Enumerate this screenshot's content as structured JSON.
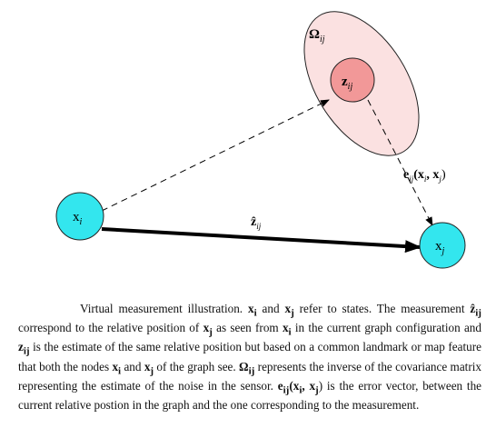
{
  "nodes": {
    "xi": {
      "sym": "x",
      "sub": "i",
      "fill": "#33e6ee"
    },
    "xj": {
      "sym": "x",
      "sub": "j",
      "fill": "#33e6ee"
    },
    "zij": {
      "sym": "z",
      "sub": "ij",
      "fill": "#f29898"
    }
  },
  "omega_label": {
    "sym": "Ω",
    "sub": "ij"
  },
  "ellipse_fill": "#fbe1e1",
  "edge_label": {
    "sym": "ẑ",
    "sub": "ij"
  },
  "error_label": {
    "pre": "e",
    "sub": "ij",
    "mid": "(x",
    "s1": "i",
    "comma": ", x",
    "s2": "j",
    "post": ")"
  },
  "caption": {
    "p1": "Virtual measurement illustration. ",
    "xi_sym": "x",
    "xi_sub": "i",
    "p2": " and ",
    "xj_sym": "x",
    "xj_sub": "j",
    "p3": " refer to states. The measurement ",
    "zhat_sym": "ẑ",
    "zhat_sub": "ij",
    "p4": " correspond to the relative position of ",
    "xj2_sym": "x",
    "xj2_sub": "j",
    "p5": " as seen from ",
    "xi2_sym": "x",
    "xi2_sub": "i",
    "p6": " in the current graph configuration and ",
    "z_sym": "z",
    "z_sub": "ij",
    "p7": " is the estimate of the same relative position but based on a common landmark or map feature that both the nodes ",
    "xi3_sym": "x",
    "xi3_sub": "i",
    "p8": " and ",
    "xj3_sym": "x",
    "xj3_sub": "j",
    "p9": " of the graph see. ",
    "om_sym": "Ω",
    "om_sub": "ij",
    "p10": " represents the inverse of the covariance matrix representing the estimate of the noise in the sensor. ",
    "e_sym": "e",
    "e_sub": "ij",
    "e_args": "(x",
    "e_s1": "i",
    "e_comma": ", x",
    "e_s2": "j",
    "e_close": ")",
    "p11": " is the error vector, between the current relative postion in the graph and the one corresponding to the measurement."
  }
}
